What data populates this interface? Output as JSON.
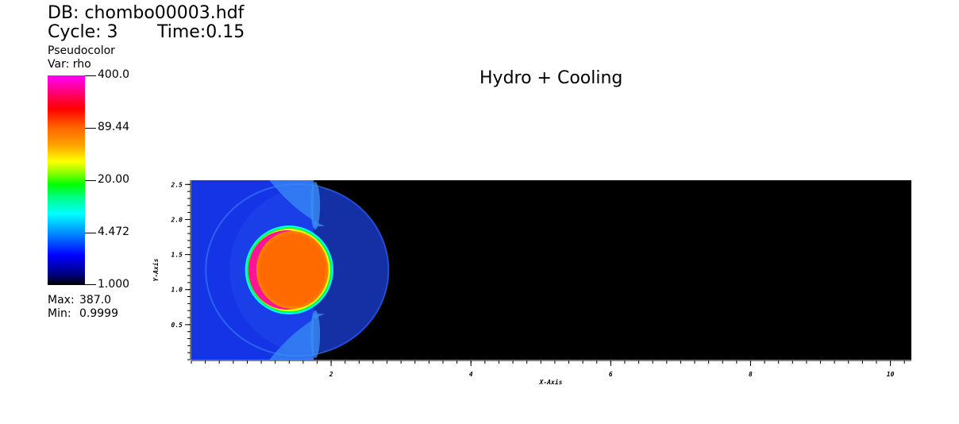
{
  "header": {
    "db_label": "DB: chombo00003.hdf",
    "cycle_label": "Cycle: 3",
    "time_label": "Time:0.15",
    "plot_type": "Pseudocolor",
    "var_label": "Var: rho"
  },
  "legend": {
    "tick_labels": [
      "400.0",
      "89.44",
      "20.00",
      "4.472",
      "1.000"
    ],
    "max_label": "Max:",
    "max_value": "387.0",
    "min_label": "Min:",
    "min_value": "0.9999",
    "scale": "log"
  },
  "chart_data": {
    "type": "heatmap",
    "title": "Hydro + Cooling",
    "xlabel": "X-Axis",
    "ylabel": "Y-Axis",
    "xlim": [
      0,
      10.3
    ],
    "ylim": [
      0,
      2.56
    ],
    "x_ticks": [
      "2",
      "4",
      "6",
      "8",
      "10"
    ],
    "x_tick_values": [
      2,
      4,
      6,
      8,
      10
    ],
    "y_ticks": [
      "0.5",
      "1.0",
      "1.5",
      "2.0",
      "2.5"
    ],
    "y_tick_values": [
      0.5,
      1.0,
      1.5,
      2.0,
      2.5
    ],
    "colorbar_range": [
      1.0,
      400.0
    ],
    "features": {
      "refined_region_x_max": 1.75,
      "background_color": "#000000",
      "ambient_color": "#1434e6",
      "clump_center": [
        1.4,
        1.28
      ],
      "clump_radius": 0.6,
      "clump_color": "#ff6a00",
      "rim_color": "#ff1493",
      "bow_shock_color": "#2a6cf0"
    }
  }
}
